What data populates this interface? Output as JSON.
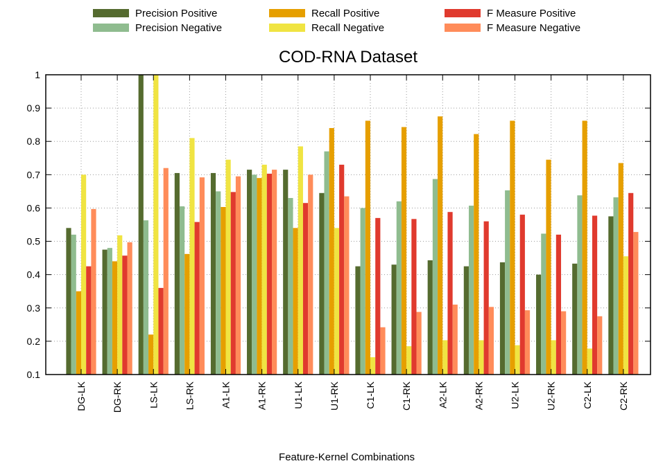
{
  "chart_data": {
    "type": "bar",
    "title": "COD-RNA Dataset",
    "xlabel": "Feature-Kernel Combinations",
    "ylabel": "",
    "ylim": [
      0.1,
      1.0
    ],
    "yticks": [
      "0.1",
      "0.2",
      "0.3",
      "0.4",
      "0.5",
      "0.6",
      "0.7",
      "0.8",
      "0.9",
      "1"
    ],
    "grid": true,
    "legend_placement": "top",
    "categories": [
      "DG-LK",
      "DG-RK",
      "LS-LK",
      "LS-RK",
      "A1-LK",
      "A1-RK",
      "U1-LK",
      "U1-RK",
      "C1-LK",
      "C1-RK",
      "A2-LK",
      "A2-RK",
      "U2-LK",
      "U2-RK",
      "C2-LK",
      "C2-RK"
    ],
    "series": [
      {
        "name": "Precision Positive",
        "color": "#556b2f",
        "values": [
          0.54,
          0.475,
          1.0,
          0.705,
          0.705,
          0.715,
          0.715,
          0.645,
          0.425,
          0.43,
          0.443,
          0.425,
          0.437,
          0.4,
          0.433,
          0.575
        ]
      },
      {
        "name": "Precision Negative",
        "color": "#8fbc8f",
        "values": [
          0.52,
          0.48,
          0.563,
          0.605,
          0.65,
          0.7,
          0.63,
          0.77,
          0.6,
          0.62,
          0.687,
          0.607,
          0.653,
          0.523,
          0.638,
          0.632
        ]
      },
      {
        "name": "Recall Positive",
        "color": "#e69f00",
        "values": [
          0.35,
          0.44,
          0.22,
          0.462,
          0.603,
          0.69,
          0.54,
          0.84,
          0.862,
          0.843,
          0.875,
          0.822,
          0.862,
          0.745,
          0.862,
          0.735
        ]
      },
      {
        "name": "Recall Negative",
        "color": "#f0e442",
        "values": [
          0.7,
          0.518,
          1.0,
          0.81,
          0.745,
          0.73,
          0.785,
          0.54,
          0.152,
          0.185,
          0.203,
          0.203,
          0.188,
          0.203,
          0.178,
          0.455
        ]
      },
      {
        "name": "F Measure Positive",
        "color": "#e03a2e",
        "values": [
          0.425,
          0.457,
          0.36,
          0.558,
          0.648,
          0.703,
          0.615,
          0.73,
          0.57,
          0.567,
          0.588,
          0.56,
          0.58,
          0.52,
          0.577,
          0.645
        ]
      },
      {
        "name": "F Measure Negative",
        "color": "#ff8c5a",
        "values": [
          0.597,
          0.497,
          0.72,
          0.692,
          0.695,
          0.715,
          0.7,
          0.635,
          0.242,
          0.288,
          0.31,
          0.303,
          0.293,
          0.29,
          0.275,
          0.528
        ]
      }
    ]
  }
}
